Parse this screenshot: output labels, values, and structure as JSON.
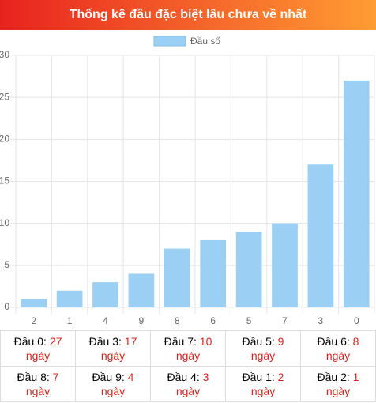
{
  "header": {
    "title": "Thống kê đầu đặc biệt lâu chưa về nhất"
  },
  "chart_data": {
    "type": "bar",
    "legend": "Đầu số",
    "color": "#9ccff4",
    "categories": [
      "2",
      "1",
      "4",
      "9",
      "8",
      "6",
      "5",
      "7",
      "3",
      "0"
    ],
    "values": [
      1,
      2,
      3,
      4,
      7,
      8,
      9,
      10,
      17,
      27
    ],
    "ylim": [
      0,
      30
    ],
    "yticks": [
      0,
      5,
      10,
      15,
      20,
      25,
      30
    ],
    "grid": true
  },
  "table": {
    "rows": [
      [
        {
          "label": "Đầu 0:",
          "value": "27",
          "unit": "ngày"
        },
        {
          "label": "Đầu 3:",
          "value": "17",
          "unit": "ngày"
        },
        {
          "label": "Đầu 7:",
          "value": "10",
          "unit": "ngày"
        },
        {
          "label": "Đầu 5:",
          "value": "9",
          "unit": "ngày"
        },
        {
          "label": "Đầu 6:",
          "value": "8",
          "unit": "ngày"
        }
      ],
      [
        {
          "label": "Đầu 8:",
          "value": "7",
          "unit": "ngày"
        },
        {
          "label": "Đầu 9:",
          "value": "4",
          "unit": "ngày"
        },
        {
          "label": "Đầu 4:",
          "value": "3",
          "unit": "ngày"
        },
        {
          "label": "Đầu 1:",
          "value": "2",
          "unit": "ngày"
        },
        {
          "label": "Đầu 2:",
          "value": "1",
          "unit": "ngày"
        }
      ]
    ]
  }
}
